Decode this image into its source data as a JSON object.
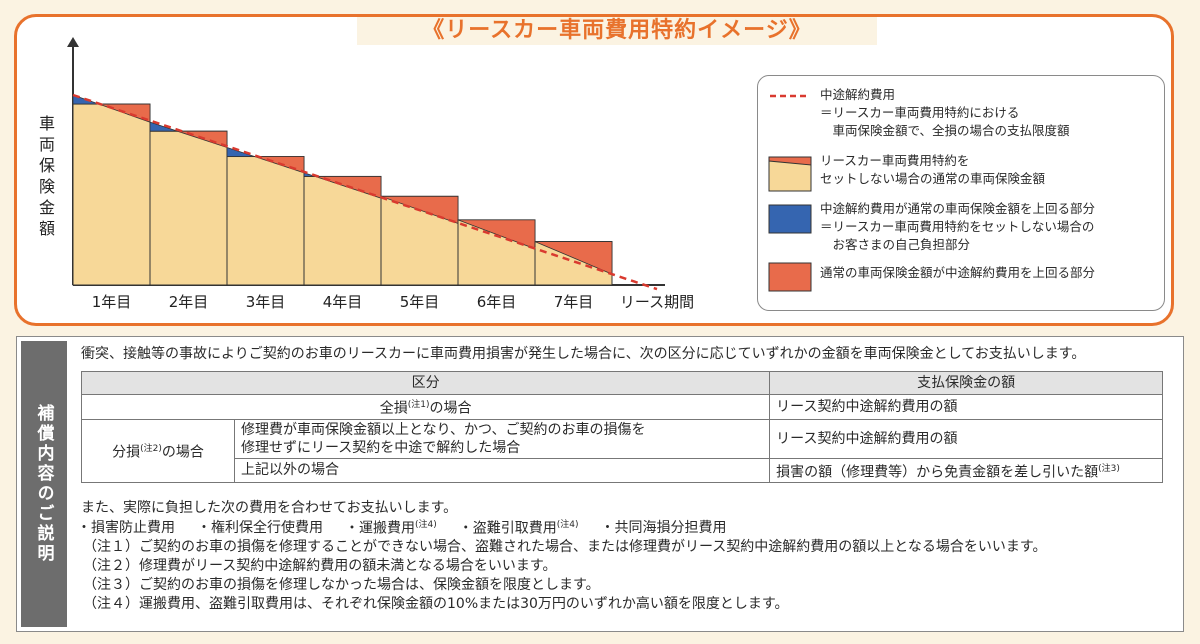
{
  "title": "《リースカー車両費用特約イメージ》",
  "chart_data": {
    "type": "bar",
    "ylabel": "車両保険金額",
    "xlabel": "リース期間",
    "categories": [
      "1年目",
      "2年目",
      "3年目",
      "4年目",
      "5年目",
      "6年目",
      "7年目"
    ],
    "insured_amount": [
      100,
      85,
      71,
      60,
      49,
      36,
      24
    ],
    "cancellation_fee_start": [
      105,
      90,
      76,
      62,
      48,
      34,
      20
    ],
    "cancellation_fee_end": [
      90,
      76,
      62,
      48,
      34,
      20,
      6
    ],
    "colors": {
      "bar_fill": "#f7d898",
      "dashed_line": "#d93a2f",
      "blue_part": "#3565b0",
      "red_part": "#e86b4b"
    }
  },
  "legend": {
    "items": [
      {
        "type": "line",
        "lines": [
          "中途解約費用",
          "＝リースカー車両費用特約における",
          "　車両保険金額で、全損の場合の支払限度額"
        ]
      },
      {
        "type": "bar",
        "lines": [
          "リースカー車両費用特約を",
          "セットしない場合の通常の車両保険金額"
        ]
      },
      {
        "type": "blue",
        "lines": [
          "中途解約費用が通常の車両保険金額を上回る部分",
          "＝リースカー車両費用特約をセットしない場合の",
          "　お客さまの自己負担部分"
        ]
      },
      {
        "type": "red",
        "lines": [
          "通常の車両保険金額が中途解約費用を上回る部分"
        ]
      }
    ]
  },
  "side_label": "補償内容のご説明",
  "intro": "衝突、接触等の事故によりご契約のお車のリースカーに車両費用損害が発生した場合に、次の区分に応じていずれかの金額を車両保険金としてお支払いします。",
  "table": {
    "header_category": "区分",
    "header_amount": "支払保険金の額",
    "total_loss_label": "全損",
    "total_loss_note": "(注1)",
    "total_loss_suffix": "の場合",
    "total_loss_amount": "リース契約中途解約費用の額",
    "partial_label": "分損",
    "partial_note": "(注2)",
    "partial_suffix": "の場合",
    "partial_row1_line1": "修理費が車両保険金額以上となり、かつ、ご契約のお車の損傷を",
    "partial_row1_line2": "修理せずにリース契約を中途で解約した場合",
    "partial_row1_amount": "リース契約中途解約費用の額",
    "partial_row2_condition": "上記以外の場合",
    "partial_row2_amount": "損害の額（修理費等）から免責金額を差し引いた額",
    "partial_row2_note": "(注3)"
  },
  "also_text": "また、実際に負担した次の費用を合わせてお支払いします。",
  "costs": [
    {
      "label": "・損害防止費用",
      "note": ""
    },
    {
      "label": "・権利保全行使費用",
      "note": ""
    },
    {
      "label": "・運搬費用",
      "note": "(注4)"
    },
    {
      "label": "・盗難引取費用",
      "note": "(注4)"
    },
    {
      "label": "・共同海損分担費用",
      "note": ""
    }
  ],
  "notes": [
    "（注１）ご契約のお車の損傷を修理することができない場合、盗難された場合、または修理費がリース契約中途解約費用の額以上となる場合をいいます。",
    "（注２）修理費がリース契約中途解約費用の額未満となる場合をいいます。",
    "（注３）ご契約のお車の損傷を修理しなかった場合は、保険金額を限度とします。",
    "（注４）運搬費用、盗難引取費用は、それぞれ保険金額の10%または30万円のいずれか高い額を限度とします。"
  ]
}
